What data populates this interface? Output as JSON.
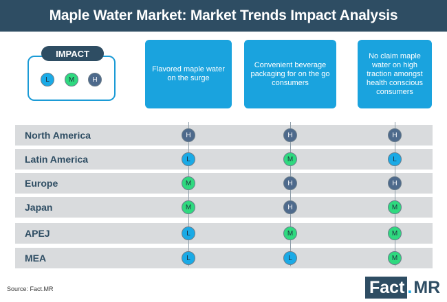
{
  "title": "Maple Water Market: Market Trends Impact Analysis",
  "legend": {
    "title": "IMPACT",
    "levels": [
      {
        "code": "L",
        "color": "#1aaae6"
      },
      {
        "code": "M",
        "color": "#2fd97f"
      },
      {
        "code": "H",
        "color": "#4e6a8c"
      }
    ]
  },
  "trends": [
    "Flavored maple water on  the surge",
    "Convenient beverage packaging for on the go consumers",
    "No claim maple water on high traction amongst health conscious consumers"
  ],
  "regions": [
    {
      "name": "North America",
      "impacts": [
        "H",
        "H",
        "H"
      ]
    },
    {
      "name": "Latin America",
      "impacts": [
        "L",
        "M",
        "L"
      ]
    },
    {
      "name": "Europe",
      "impacts": [
        "M",
        "H",
        "H"
      ]
    },
    {
      "name": "Japan",
      "impacts": [
        "M",
        "H",
        "M"
      ]
    },
    {
      "name": "APEJ",
      "impacts": [
        "L",
        "M",
        "M"
      ]
    },
    {
      "name": "MEA",
      "impacts": [
        "L",
        "L",
        "M"
      ]
    }
  ],
  "source": "Source: Fact.MR",
  "logo": {
    "part1": "Fact",
    "dot": ".",
    "part2": "MR"
  }
}
